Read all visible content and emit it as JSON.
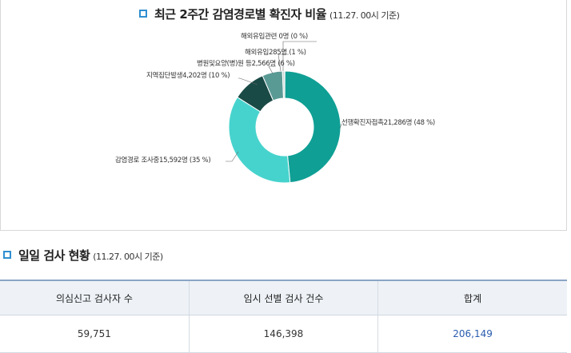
{
  "chart_section": {
    "title": "최근 2주간 감염경로별 확진자 비율",
    "as_of": "(11.27. 00시 기준)"
  },
  "chart_data": {
    "type": "pie",
    "categories": [
      "선행확진자접촉",
      "감염경로 조사중",
      "지역집단발생",
      "병원및요양(병)원 등",
      "해외유입",
      "해외유입관련"
    ],
    "values": [
      21286,
      15592,
      4202,
      2566,
      285,
      0
    ],
    "percents": [
      48,
      35,
      10,
      6,
      1,
      0
    ],
    "colors": [
      "#0f9f95",
      "#47d3cd",
      "#1a4a46",
      "#5a9a95",
      "#c9d8d6",
      "#c9d8d6"
    ],
    "labels": [
      "선행확진자접촉21,286명 (48 %)",
      "감염경로 조사중15,592명 (35 %)",
      "지역집단발생4,202명 (10 %)",
      "병원및요양(병)원 등2,566명 (6 %)",
      "해외유입285명 (1 %)",
      "해외유입관련 0명 (0 %)"
    ]
  },
  "table_section": {
    "title": "일일 검사 현황",
    "as_of": "(11.27. 00시 기준)"
  },
  "table": {
    "headers": [
      "의심신고 검사자 수",
      "임시 선별 검사 건수",
      "합계"
    ],
    "row": [
      "59,751",
      "146,398",
      "206,149"
    ]
  },
  "accent_color": "#2f8fd0"
}
